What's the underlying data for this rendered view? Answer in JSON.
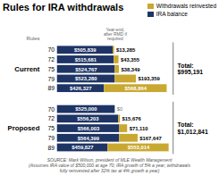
{
  "chart_data": {
    "type": "bar",
    "orientation": "horizontal",
    "stacked": true,
    "data_labels": true,
    "tick_labels": "y",
    "legend": "top-right",
    "title": "Rules for IRA withdrawals",
    "caption": "SOURCE: Mark Wilson, president of MLE Wealth Management\n(Assumes IRA value of $500,000 at age 70; IRA growth of 5% a year; withdrawals\nfully reinvested after 32% tax at 4% growth a year)",
    "row_header": "Rules",
    "column_header": "Year-end,\nafter RMD if\nrequired",
    "xlim": [
      0,
      1050000
    ],
    "groups": [
      {
        "name": "Current",
        "categories": [
          70,
          72,
          75,
          79,
          89
        ],
        "total": "Total:\n$995,191",
        "series": [
          {
            "name": "IRA balance",
            "color": "#1e3464",
            "values": [
              505839,
              515681,
              524767,
              523280,
              426327
            ],
            "value_labels": [
              "$505,839",
              "$515,681",
              "$524,767",
              "$523,280",
              "$426,327"
            ]
          },
          {
            "name": "Withdrawals reinvested",
            "color": "#c9a832",
            "values": [
              13285,
              43355,
              38349,
              193359,
              568864
            ],
            "value_labels": [
              "$13,285",
              "$43,355",
              "$38,349",
              "$193,359",
              "$568,864"
            ]
          }
        ]
      },
      {
        "name": "Proposed",
        "categories": [
          70,
          72,
          75,
          79,
          89
        ],
        "total": "Total:\n$1,012,841",
        "series": [
          {
            "name": "IRA balance",
            "color": "#1e3464",
            "values": [
              525000,
              556203,
              566003,
              564399,
              459827
            ],
            "value_labels": [
              "$525,000",
              "$556,203",
              "$566,003",
              "$564,399",
              "$459,827"
            ]
          },
          {
            "name": "Withdrawals reinvested",
            "color": "#c9a832",
            "values": [
              0,
              15676,
              71110,
              167647,
              553014
            ],
            "value_labels": [
              "$0",
              "$15,676",
              "$71,110",
              "$167,647",
              "$553,014"
            ]
          }
        ]
      }
    ]
  }
}
